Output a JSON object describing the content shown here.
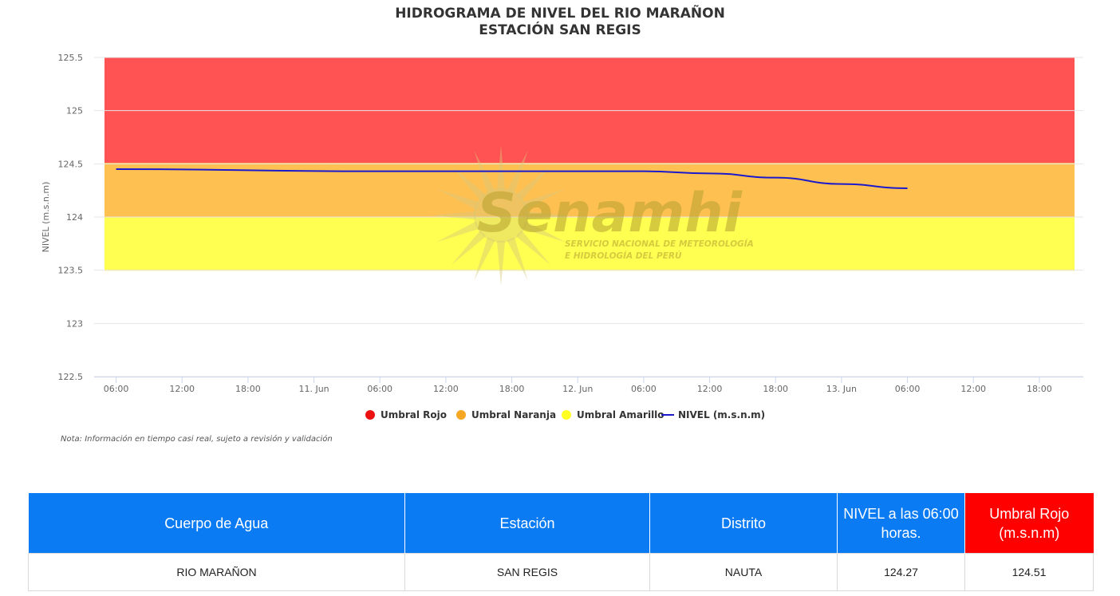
{
  "chart_data": {
    "type": "line",
    "title": "HIDROGRAMA DE NIVEL DEL RIO MARAÑON",
    "subtitle": "ESTACIÓN SAN REGIS",
    "ylabel": "NIVEL (m.s.n.m)",
    "xlabel": "",
    "ylim": [
      122.5,
      125.5
    ],
    "yticks": [
      "125.5",
      "125",
      "124.5",
      "124",
      "123.5",
      "123",
      "122.5"
    ],
    "xlim_hours": [
      -2,
      88
    ],
    "xticks": [
      {
        "label": "06:00",
        "hour": 0
      },
      {
        "label": "12:00",
        "hour": 6
      },
      {
        "label": "18:00",
        "hour": 12
      },
      {
        "label": "11. Jun",
        "hour": 18
      },
      {
        "label": "06:00",
        "hour": 24
      },
      {
        "label": "12:00",
        "hour": 30
      },
      {
        "label": "18:00",
        "hour": 36
      },
      {
        "label": "12. Jun",
        "hour": 42
      },
      {
        "label": "06:00",
        "hour": 48
      },
      {
        "label": "12:00",
        "hour": 54
      },
      {
        "label": "18:00",
        "hour": 60
      },
      {
        "label": "13. Jun",
        "hour": 66
      },
      {
        "label": "06:00",
        "hour": 72
      },
      {
        "label": "12:00",
        "hour": 78
      },
      {
        "label": "18:00",
        "hour": 84
      }
    ],
    "grid": true,
    "legend_position": "bottom-center",
    "bands": [
      {
        "name": "Umbral Rojo",
        "from": 124.51,
        "to": 125.5,
        "color": "#ff5252"
      },
      {
        "name": "Umbral Naranja",
        "from": 124.0,
        "to": 124.51,
        "color": "#ffc052"
      },
      {
        "name": "Umbral Amarillo",
        "from": 123.5,
        "to": 124.0,
        "color": "#ffff52"
      }
    ],
    "series": [
      {
        "name": "NIVEL (m.s.n.m)",
        "color": "#1a1acc",
        "x_hours": [
          0,
          24,
          48,
          54,
          60,
          66,
          72
        ],
        "values": [
          124.45,
          124.43,
          124.43,
          124.41,
          124.37,
          124.31,
          124.27
        ]
      }
    ],
    "legend": [
      {
        "label": "Umbral Rojo",
        "color": "#ee1111",
        "marker": "circle"
      },
      {
        "label": "Umbral Naranja",
        "color": "#f5a623",
        "marker": "circle"
      },
      {
        "label": "Umbral Amarillo",
        "color": "#ffff22",
        "marker": "circle"
      },
      {
        "label": "NIVEL (m.s.n.m)",
        "color": "#1a1acc",
        "marker": "line"
      }
    ]
  },
  "note": "Nota: Información en tiempo casi real, sujeto a revisión y validación",
  "watermark": {
    "name": "Senamhi",
    "line1": "SERVICIO NACIONAL DE METEOROLOGÍA",
    "line2": "E HIDROLOGÍA DEL PERÚ"
  },
  "table": {
    "headers": [
      "Cuerpo de Agua",
      "Estación",
      "Distrito",
      "NIVEL a las 06:00 horas.",
      "Umbral Rojo (m.s.n.m)"
    ],
    "header_colors": [
      "#0a7bf2",
      "#0a7bf2",
      "#0a7bf2",
      "#0a7bf2",
      "#ff0000"
    ],
    "rows": [
      [
        "RIO MARAÑON",
        "SAN REGIS",
        "NAUTA",
        "124.27",
        "124.51"
      ]
    ]
  }
}
